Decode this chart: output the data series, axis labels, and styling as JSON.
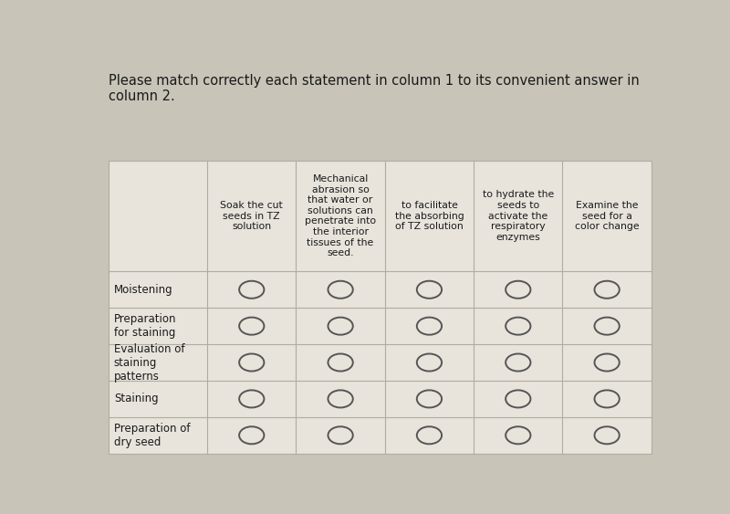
{
  "title": "Please match correctly each statement in column 1 to its convenient answer in\ncolumn 2.",
  "bg_color": "#c8c4b8",
  "card_bg": "#e8e4dc",
  "row_labels": [
    "Moistening",
    "Preparation\nfor staining",
    "Evaluation of\nstaining\npatterns",
    "Staining",
    "Preparation of\ndry seed"
  ],
  "col_headers": [
    "Soak the cut\nseeds in TZ\nsolution",
    "Mechanical\nabrasion so\nthat water or\nsolutions can\npenetrate into\nthe interior\ntissues of the\nseed.",
    "to facilitate\nthe absorbing\nof TZ solution",
    "to hydrate the\nseeds to\nactivate the\nrespiratory\nenzymes",
    "Examine the\nseed for a\ncolor change"
  ],
  "title_fontsize": 10.5,
  "header_fontsize": 7.8,
  "row_label_fontsize": 8.5,
  "text_color": "#1a1a1a",
  "grid_line_color": "#b0aca0",
  "circle_edge_color": "#555555"
}
